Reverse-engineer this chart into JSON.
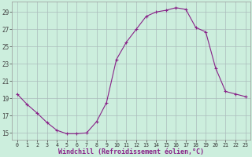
{
  "hours": [
    0,
    1,
    2,
    3,
    4,
    5,
    6,
    7,
    8,
    9,
    10,
    11,
    12,
    13,
    14,
    15,
    16,
    17,
    18,
    19,
    20,
    21,
    22,
    23
  ],
  "values": [
    19.5,
    18.3,
    17.3,
    16.2,
    15.3,
    14.9,
    14.9,
    15.0,
    16.3,
    18.5,
    23.5,
    25.5,
    27.0,
    28.5,
    29.0,
    29.2,
    29.5,
    29.3,
    27.2,
    26.7,
    22.5,
    19.8,
    19.5,
    19.2
  ],
  "line_color": "#882288",
  "marker": "+",
  "marker_size": 3,
  "marker_lw": 0.8,
  "line_width": 0.8,
  "bg_color": "#cceedd",
  "grid_color": "#aabbbb",
  "xlabel": "Windchill (Refroidissement éolien,°C)",
  "xlabel_color": "#882288",
  "ylabel_ticks": [
    15,
    17,
    19,
    21,
    23,
    25,
    27,
    29
  ],
  "ylim": [
    14.2,
    30.2
  ],
  "xlim": [
    -0.5,
    23.5
  ],
  "xtick_labels": [
    "0",
    "1",
    "2",
    "3",
    "4",
    "5",
    "6",
    "7",
    "8",
    "9",
    "10",
    "11",
    "12",
    "13",
    "14",
    "15",
    "16",
    "17",
    "18",
    "19",
    "20",
    "21",
    "22",
    "23"
  ]
}
